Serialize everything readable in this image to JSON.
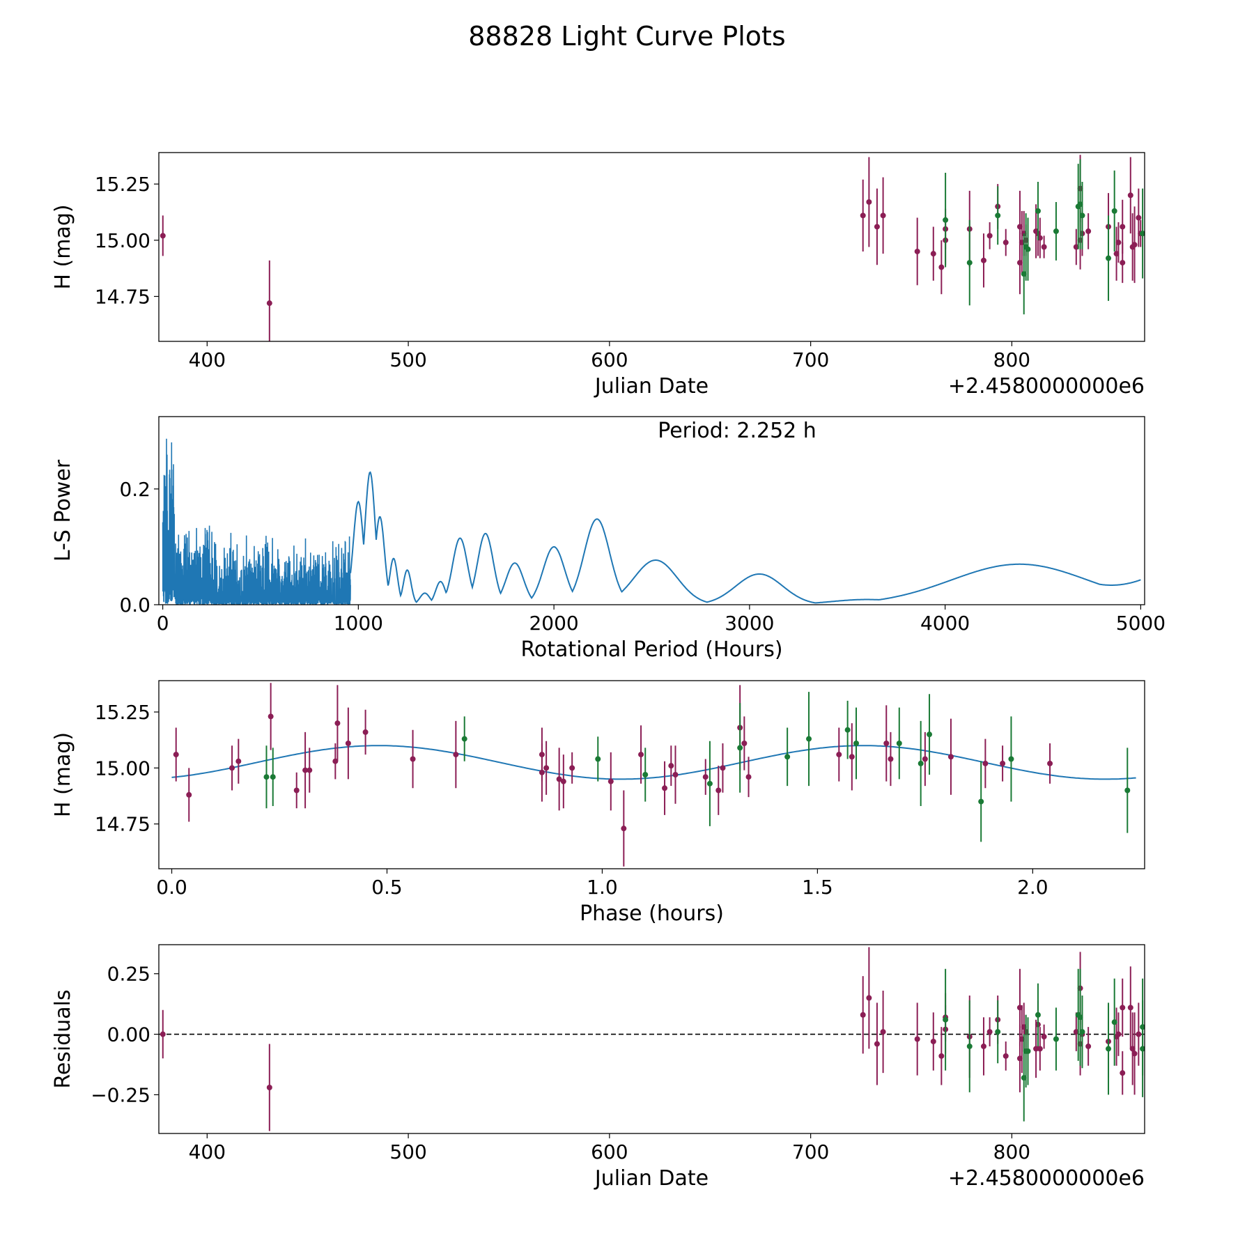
{
  "figure": {
    "title": "88828 Light Curve Plots"
  },
  "colors": {
    "red_band": "#8b1e55",
    "green_band": "#1a7a35",
    "curve": "#1f77b4",
    "axis": "#000000"
  },
  "chart_data": [
    {
      "id": "lc",
      "type": "scatter",
      "xlabel": "Julian Date",
      "ylabel": "H (mag)",
      "offset_label": "+2.4580000000e6",
      "xlim": [
        376,
        866
      ],
      "ylim": [
        14.55,
        15.39
      ],
      "xticks": [
        400,
        500,
        600,
        700,
        800
      ],
      "xtick_labels": [
        "400",
        "500",
        "600",
        "700",
        "800"
      ],
      "yticks": [
        14.75,
        15.0,
        15.25
      ],
      "ytick_labels": [
        "14.75",
        "15.00",
        "15.25"
      ],
      "series": [
        {
          "name": "r",
          "color_key": "red_band",
          "points": [
            [
              378,
              15.02,
              0.09
            ],
            [
              431,
              14.72,
              0.19
            ],
            [
              726,
              15.11,
              0.16
            ],
            [
              729,
              15.17,
              0.2
            ],
            [
              733,
              15.06,
              0.17
            ],
            [
              736,
              15.11,
              0.17
            ],
            [
              753,
              14.95,
              0.15
            ],
            [
              761,
              14.94,
              0.12
            ],
            [
              765,
              14.88,
              0.12
            ],
            [
              767,
              15.0,
              0.11
            ],
            [
              767,
              15.05,
              0.09
            ],
            [
              779,
              15.05,
              0.17
            ],
            [
              786,
              14.91,
              0.12
            ],
            [
              789,
              15.02,
              0.06
            ],
            [
              793,
              15.15,
              0.1
            ],
            [
              797,
              14.99,
              0.06
            ],
            [
              804,
              14.9,
              0.14
            ],
            [
              804,
              15.06,
              0.16
            ],
            [
              805,
              14.99,
              0.14
            ],
            [
              806,
              15.03,
              0.1
            ],
            [
              807,
              15.0,
              0.07
            ],
            [
              812,
              15.04,
              0.12
            ],
            [
              813,
              15.03,
              0.1
            ],
            [
              814,
              15.01,
              0.09
            ],
            [
              816,
              14.97,
              0.05
            ],
            [
              832,
              14.97,
              0.08
            ],
            [
              834,
              15.23,
              0.15
            ],
            [
              834,
              15.0,
              0.13
            ],
            [
              835,
              15.03,
              0.1
            ],
            [
              838,
              15.04,
              0.08
            ],
            [
              848,
              15.06,
              0.15
            ],
            [
              852,
              14.94,
              0.12
            ],
            [
              853,
              14.99,
              0.09
            ],
            [
              855,
              15.06,
              0.12
            ],
            [
              855,
              14.9,
              0.09
            ],
            [
              859,
              15.2,
              0.17
            ],
            [
              860,
              14.97,
              0.15
            ],
            [
              861,
              14.98,
              0.17
            ],
            [
              863,
              15.1,
              0.13
            ],
            [
              864,
              15.03,
              0.06
            ]
          ]
        },
        {
          "name": "g",
          "color_key": "green_band",
          "points": [
            [
              767,
              15.09,
              0.21
            ],
            [
              779,
              14.9,
              0.19
            ],
            [
              793,
              15.11,
              0.13
            ],
            [
              806,
              14.85,
              0.18
            ],
            [
              807,
              14.97,
              0.15
            ],
            [
              808,
              14.96,
              0.14
            ],
            [
              813,
              15.13,
              0.13
            ],
            [
              822,
              15.04,
              0.13
            ],
            [
              833,
              15.15,
              0.19
            ],
            [
              834,
              15.16,
              0.2
            ],
            [
              835,
              15.11,
              0.15
            ],
            [
              848,
              14.92,
              0.19
            ],
            [
              851,
              15.13,
              0.18
            ],
            [
              865,
              15.03,
              0.2
            ]
          ]
        }
      ]
    },
    {
      "id": "periodogram",
      "type": "line",
      "xlabel": "Rotational Period (Hours)",
      "ylabel": "L-S Power",
      "annotation": "Period: 2.252 h",
      "xlim": [
        -20,
        5020
      ],
      "ylim": [
        0,
        0.325
      ],
      "xticks": [
        0,
        1000,
        2000,
        3000,
        4000,
        5000
      ],
      "xtick_labels": [
        "0",
        "1000",
        "2000",
        "3000",
        "4000",
        "5000"
      ],
      "yticks": [
        0.0,
        0.2
      ],
      "ytick_labels": [
        "0.0",
        "0.2"
      ],
      "peaks": [
        [
          1000,
          0.178,
          26
        ],
        [
          1060,
          0.229,
          26
        ],
        [
          1110,
          0.152,
          24
        ],
        [
          1180,
          0.08,
          20
        ],
        [
          1250,
          0.06,
          20
        ],
        [
          1340,
          0.02,
          25
        ],
        [
          1420,
          0.04,
          25
        ],
        [
          1520,
          0.115,
          38
        ],
        [
          1650,
          0.123,
          40
        ],
        [
          1800,
          0.072,
          45
        ],
        [
          2000,
          0.1,
          55
        ],
        [
          2220,
          0.148,
          65
        ],
        [
          2520,
          0.077,
          110
        ],
        [
          3050,
          0.053,
          120
        ],
        [
          3600,
          0.009,
          180
        ],
        [
          4380,
          0.07,
          350
        ]
      ],
      "tail": [
        [
          4900,
          0.035
        ],
        [
          5000,
          0.043
        ]
      ],
      "dense_noise": {
        "x_range": [
          0,
          960
        ],
        "max_power": 0.3
      }
    },
    {
      "id": "phased",
      "type": "scatter",
      "xlabel": "Phase (hours)",
      "ylabel": "H (mag)",
      "period_hours": 2.252,
      "xlim": [
        -0.03,
        2.26
      ],
      "ylim": [
        14.55,
        15.39
      ],
      "xticks": [
        0.0,
        0.5,
        1.0,
        1.5,
        2.0
      ],
      "xtick_labels": [
        "0.0",
        "0.5",
        "1.0",
        "1.5",
        "2.0"
      ],
      "yticks": [
        14.75,
        15.0,
        15.25
      ],
      "ytick_labels": [
        "14.75",
        "15.00",
        "15.25"
      ],
      "model": {
        "mean": 15.025,
        "amplitude": 0.075,
        "peak_phase": 0.48
      },
      "series": [
        {
          "name": "r",
          "color_key": "red_band",
          "points": [
            [
              0.01,
              15.06,
              0.12
            ],
            [
              0.04,
              14.88,
              0.12
            ],
            [
              0.14,
              15.0,
              0.1
            ],
            [
              0.155,
              15.03,
              0.1
            ],
            [
              0.23,
              15.23,
              0.15
            ],
            [
              0.29,
              14.9,
              0.08
            ],
            [
              0.31,
              14.99,
              0.17
            ],
            [
              0.32,
              14.99,
              0.1
            ],
            [
              0.38,
              15.03,
              0.08
            ],
            [
              0.385,
              15.2,
              0.17
            ],
            [
              0.41,
              15.11,
              0.16
            ],
            [
              0.45,
              15.16,
              0.1
            ],
            [
              0.56,
              15.04,
              0.13
            ],
            [
              0.66,
              15.06,
              0.15
            ],
            [
              0.86,
              15.06,
              0.12
            ],
            [
              0.86,
              14.98,
              0.13
            ],
            [
              0.87,
              15.0,
              0.12
            ],
            [
              0.9,
              14.95,
              0.14
            ],
            [
              0.91,
              14.94,
              0.12
            ],
            [
              0.93,
              15.0,
              0.07
            ],
            [
              1.02,
              14.94,
              0.13
            ],
            [
              1.05,
              14.73,
              0.17
            ],
            [
              1.09,
              15.06,
              0.13
            ],
            [
              1.145,
              14.91,
              0.12
            ],
            [
              1.16,
              15.01,
              0.09
            ],
            [
              1.17,
              14.97,
              0.13
            ],
            [
              1.24,
              14.96,
              0.08
            ],
            [
              1.27,
              14.9,
              0.11
            ],
            [
              1.28,
              15.0,
              0.11
            ],
            [
              1.32,
              15.18,
              0.19
            ],
            [
              1.33,
              15.11,
              0.12
            ],
            [
              1.34,
              14.96,
              0.09
            ],
            [
              1.55,
              15.06,
              0.12
            ],
            [
              1.58,
              15.05,
              0.15
            ],
            [
              1.66,
              15.11,
              0.17
            ],
            [
              1.67,
              15.04,
              0.12
            ],
            [
              1.75,
              15.04,
              0.12
            ],
            [
              1.81,
              15.05,
              0.17
            ],
            [
              1.89,
              15.02,
              0.11
            ],
            [
              1.93,
              15.02,
              0.08
            ],
            [
              2.04,
              15.02,
              0.09
            ]
          ]
        },
        {
          "name": "g",
          "color_key": "green_band",
          "points": [
            [
              0.22,
              14.96,
              0.14
            ],
            [
              0.235,
              14.96,
              0.13
            ],
            [
              0.68,
              15.13,
              0.1
            ],
            [
              0.99,
              15.04,
              0.1
            ],
            [
              1.1,
              14.97,
              0.12
            ],
            [
              1.25,
              14.93,
              0.19
            ],
            [
              1.32,
              15.09,
              0.2
            ],
            [
              1.43,
              15.05,
              0.13
            ],
            [
              1.48,
              15.13,
              0.21
            ],
            [
              1.57,
              15.17,
              0.13
            ],
            [
              1.59,
              15.11,
              0.16
            ],
            [
              1.69,
              15.11,
              0.16
            ],
            [
              1.74,
              15.02,
              0.19
            ],
            [
              1.76,
              15.15,
              0.18
            ],
            [
              1.88,
              14.85,
              0.18
            ],
            [
              1.95,
              15.04,
              0.19
            ],
            [
              2.22,
              14.9,
              0.19
            ]
          ]
        }
      ]
    },
    {
      "id": "residuals",
      "type": "scatter",
      "xlabel": "Julian Date",
      "ylabel": "Residuals",
      "offset_label": "+2.4580000000e6",
      "xlim": [
        376,
        866
      ],
      "ylim": [
        -0.41,
        0.37
      ],
      "xticks": [
        400,
        500,
        600,
        700,
        800
      ],
      "xtick_labels": [
        "400",
        "500",
        "600",
        "700",
        "800"
      ],
      "yticks": [
        -0.25,
        0.0,
        0.25
      ],
      "ytick_labels": [
        "−0.25",
        "0.00",
        "0.25"
      ],
      "zero_line": 0.0,
      "series": [
        {
          "name": "r",
          "color_key": "red_band",
          "points": [
            [
              378,
              0.0,
              0.1
            ],
            [
              431,
              -0.22,
              0.18
            ],
            [
              726,
              0.08,
              0.16
            ],
            [
              729,
              0.15,
              0.21
            ],
            [
              733,
              -0.04,
              0.17
            ],
            [
              736,
              0.01,
              0.17
            ],
            [
              753,
              -0.02,
              0.15
            ],
            [
              761,
              -0.03,
              0.12
            ],
            [
              765,
              -0.09,
              0.12
            ],
            [
              767,
              0.02,
              0.1
            ],
            [
              767,
              0.07,
              0.1
            ],
            [
              779,
              -0.01,
              0.17
            ],
            [
              786,
              -0.05,
              0.12
            ],
            [
              789,
              0.01,
              0.06
            ],
            [
              793,
              0.06,
              0.1
            ],
            [
              797,
              -0.09,
              0.06
            ],
            [
              804,
              -0.1,
              0.14
            ],
            [
              804,
              0.11,
              0.16
            ],
            [
              805,
              -0.02,
              0.14
            ],
            [
              806,
              0.03,
              0.1
            ],
            [
              807,
              0.01,
              0.07
            ],
            [
              812,
              -0.06,
              0.12
            ],
            [
              813,
              0.04,
              0.1
            ],
            [
              814,
              -0.06,
              0.09
            ],
            [
              816,
              -0.01,
              0.05
            ],
            [
              832,
              0.01,
              0.08
            ],
            [
              834,
              0.19,
              0.15
            ],
            [
              834,
              -0.04,
              0.13
            ],
            [
              835,
              0.0,
              0.1
            ],
            [
              838,
              -0.05,
              0.08
            ],
            [
              848,
              -0.03,
              0.15
            ],
            [
              852,
              -0.01,
              0.12
            ],
            [
              853,
              0.0,
              0.09
            ],
            [
              855,
              0.11,
              0.12
            ],
            [
              855,
              -0.16,
              0.09
            ],
            [
              859,
              0.11,
              0.17
            ],
            [
              860,
              -0.06,
              0.15
            ],
            [
              861,
              -0.08,
              0.17
            ],
            [
              863,
              0.0,
              0.13
            ]
          ]
        },
        {
          "name": "g",
          "color_key": "green_band",
          "points": [
            [
              767,
              0.06,
              0.21
            ],
            [
              779,
              -0.05,
              0.19
            ],
            [
              793,
              0.01,
              0.13
            ],
            [
              806,
              -0.18,
              0.18
            ],
            [
              807,
              -0.07,
              0.15
            ],
            [
              808,
              -0.07,
              0.14
            ],
            [
              813,
              0.08,
              0.13
            ],
            [
              822,
              -0.02,
              0.13
            ],
            [
              833,
              0.08,
              0.19
            ],
            [
              834,
              0.07,
              0.2
            ],
            [
              835,
              0.01,
              0.15
            ],
            [
              848,
              -0.06,
              0.19
            ],
            [
              851,
              0.05,
              0.18
            ],
            [
              865,
              -0.06,
              0.2
            ],
            [
              865,
              0.03,
              0.2
            ]
          ]
        }
      ]
    }
  ]
}
